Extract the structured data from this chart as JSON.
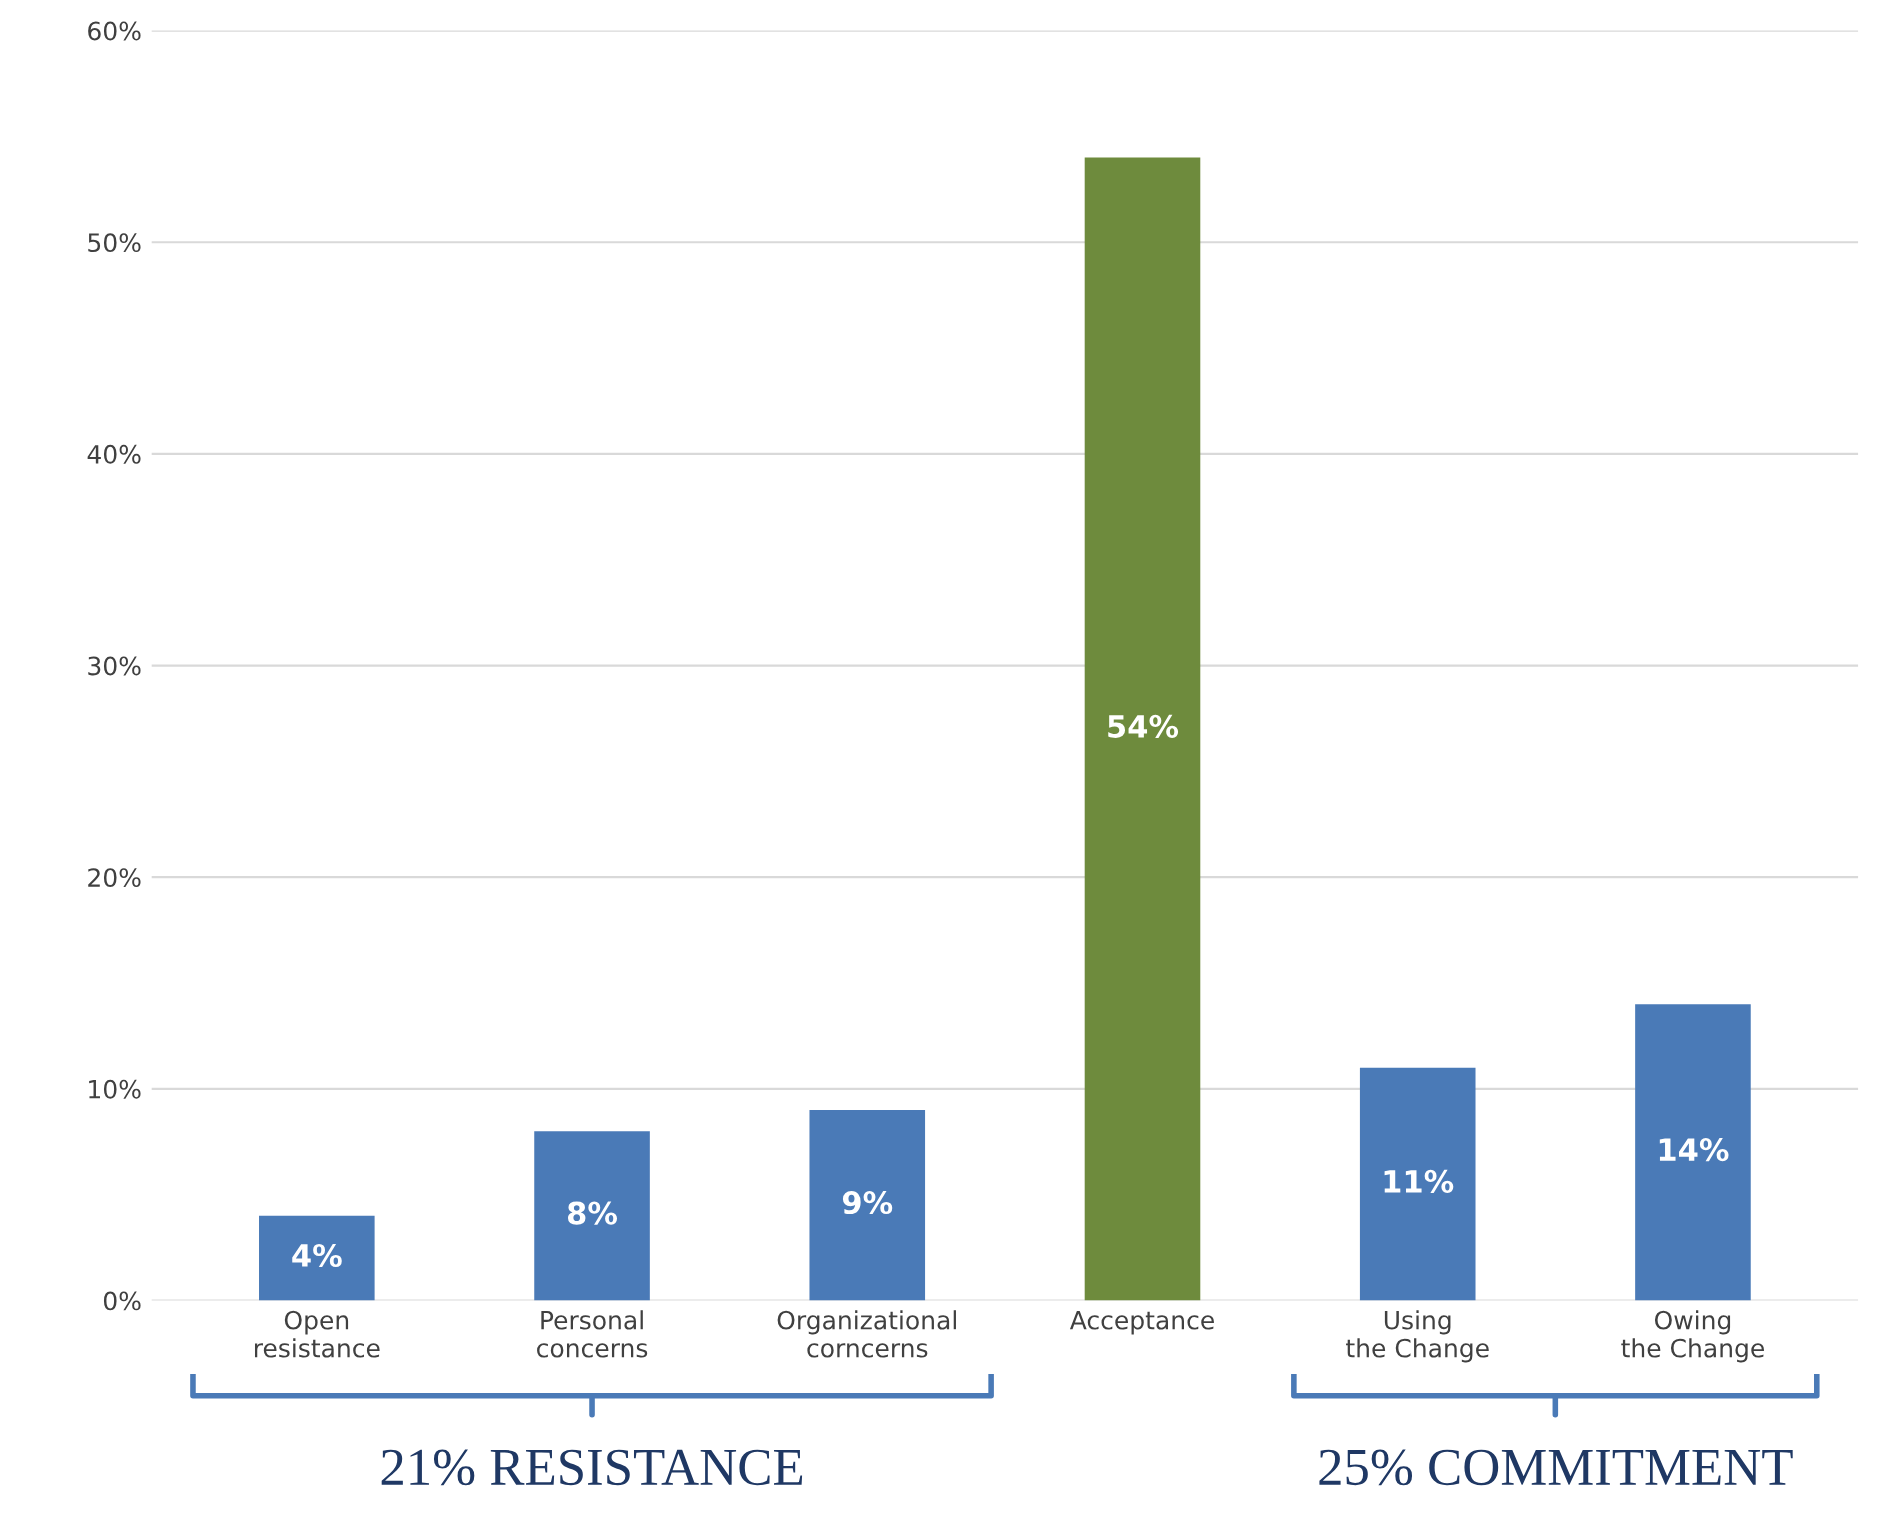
{
  "chart_data": {
    "type": "bar",
    "categories": [
      "Open resistance",
      "Personal concerns",
      "Organizational corncerns",
      "Acceptance",
      "Using the Change",
      "Owing the Change"
    ],
    "values": [
      4,
      8,
      9,
      54,
      11,
      14
    ],
    "colors": [
      "#4a7ab7",
      "#4a7ab7",
      "#4a7ab7",
      "#6e8b3d",
      "#4a7ab7",
      "#4a7ab7"
    ],
    "value_labels": [
      "4%",
      "8%",
      "9%",
      "54%",
      "11%",
      "14%"
    ],
    "ylim": [
      0,
      60
    ],
    "yticks": [
      {
        "value": 0,
        "label": "0%"
      },
      {
        "value": 10,
        "label": "10%"
      },
      {
        "value": 20,
        "label": "20%"
      },
      {
        "value": 30,
        "label": "30%"
      },
      {
        "value": 40,
        "label": "40%"
      },
      {
        "value": 50,
        "label": "50%"
      },
      {
        "value": 60,
        "label": "60%"
      }
    ],
    "grid": "y",
    "annotations": [
      "21% RESISTANCE",
      "25% COMMITMENT"
    ]
  }
}
